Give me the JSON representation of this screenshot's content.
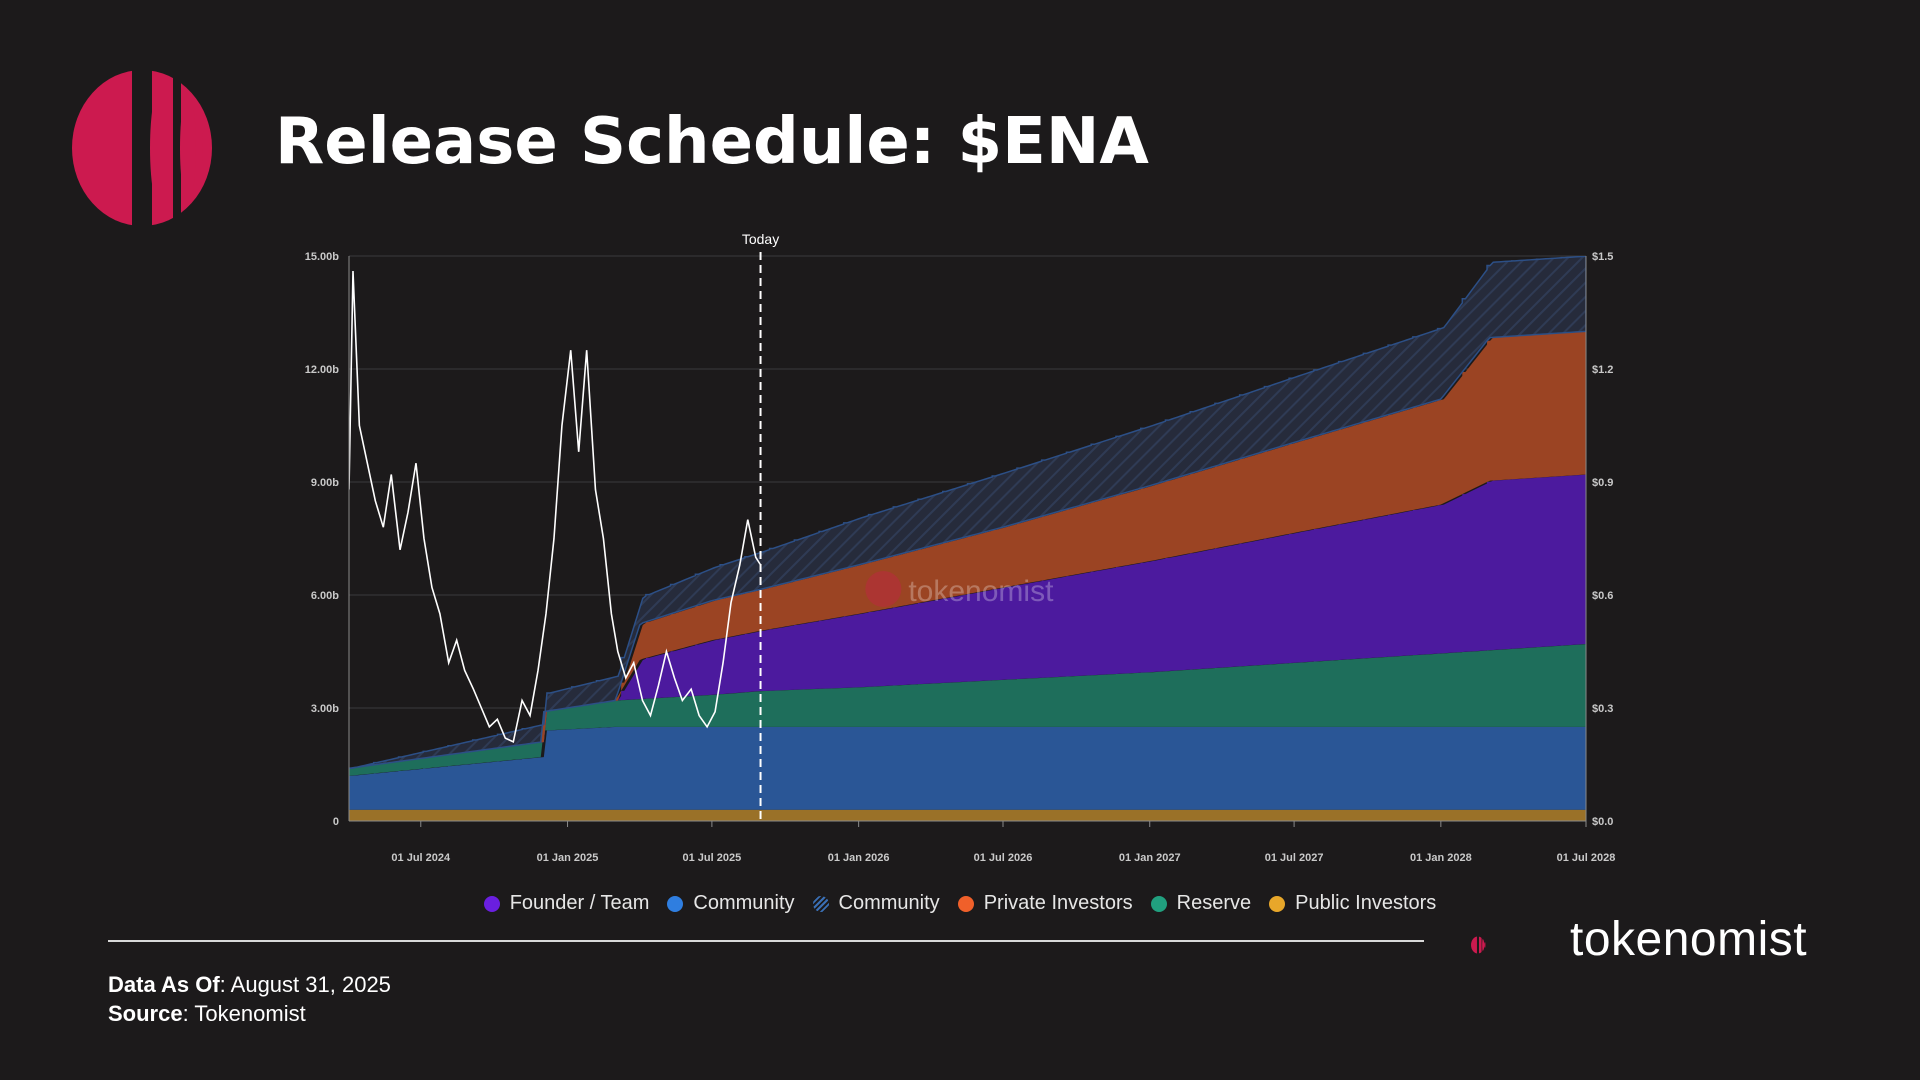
{
  "header": {
    "title": "Release Schedule: $ENA"
  },
  "footer": {
    "data_as_of_label": "Data As Of",
    "data_as_of_value": ": August 31, 2025",
    "source_label": "Source",
    "source_value": ": Tokenomist"
  },
  "brand": {
    "name": "tokenomist",
    "watermark": "tokenomist"
  },
  "colors": {
    "background": "#1c1a1b",
    "founder_team": "#4c1a9e",
    "community": "#2a5696",
    "community_hatched": "#26324a",
    "private_investors": "#9b4423",
    "reserve": "#1e6e5b",
    "public_investors": "#9a7128",
    "price_line": "#ffffff",
    "brand_red": "#cc1a4f"
  },
  "chart_data": {
    "type": "area",
    "title": "",
    "today_label": "Today",
    "today_date": "2025-08-31",
    "x_ticks": [
      "01 Jul 2024",
      "01 Jan 2025",
      "01 Jul 2025",
      "01 Jan 2026",
      "01 Jul 2026",
      "01 Jan 2027",
      "01 Jul 2027",
      "01 Jan 2028",
      "01 Jul 2028"
    ],
    "xlim": [
      "2024-04-02",
      "2028-07-01"
    ],
    "y_left_ticks": [
      "0",
      "3.00b",
      "6.00b",
      "9.00b",
      "12.00b",
      "15.00b"
    ],
    "ylim_left": [
      0,
      15
    ],
    "y_left_unit": "billions of tokens",
    "y_right_ticks": [
      "$0.0",
      "$0.3",
      "$0.6",
      "$0.9",
      "$1.2",
      "$1.5"
    ],
    "ylim_right": [
      0,
      1.5
    ],
    "stacking_order": [
      "Public Investors",
      "Community",
      "Reserve",
      "Founder / Team",
      "Private Investors",
      "Community (projected)"
    ],
    "series": [
      {
        "name": "Founder / Team",
        "legend_style": "dot",
        "x": [
          "2024-04-02",
          "2025-03-02",
          "2025-04-02",
          "2025-07-01",
          "2025-08-31",
          "2026-01-01",
          "2026-07-01",
          "2027-01-01",
          "2027-07-01",
          "2028-01-01",
          "2028-03-02",
          "2028-07-01"
        ],
        "y": [
          0,
          0,
          1.05,
          1.45,
          1.6,
          1.95,
          2.45,
          2.95,
          3.45,
          3.95,
          4.5,
          4.5
        ]
      },
      {
        "name": "Community",
        "legend_style": "dot",
        "x": [
          "2024-04-02",
          "2024-11-30",
          "2024-12-01",
          "2025-03-02",
          "2025-07-01",
          "2025-08-31",
          "2028-07-01"
        ],
        "y": [
          0.9,
          1.4,
          2.1,
          2.2,
          2.2,
          2.2,
          2.2
        ]
      },
      {
        "name": "Community",
        "legend_style": "hatched",
        "x": [
          "2024-04-02",
          "2025-08-31",
          "2026-01-01",
          "2026-07-01",
          "2027-01-01",
          "2027-07-01",
          "2028-01-01",
          "2028-03-02",
          "2028-07-01"
        ],
        "y": [
          0,
          1.0,
          1.25,
          1.45,
          1.6,
          1.75,
          1.9,
          2.0,
          2.0
        ]
      },
      {
        "name": "Private Investors",
        "legend_style": "dot",
        "x": [
          "2024-04-02",
          "2025-03-02",
          "2025-04-02",
          "2025-07-01",
          "2025-08-31",
          "2026-01-01",
          "2026-07-01",
          "2027-01-01",
          "2027-07-01",
          "2028-01-01",
          "2028-03-02",
          "2028-07-01"
        ],
        "y": [
          0,
          0,
          0.95,
          1.05,
          1.1,
          1.3,
          1.6,
          2.0,
          2.4,
          2.8,
          3.8,
          3.8
        ]
      },
      {
        "name": "Reserve",
        "legend_style": "dot",
        "x": [
          "2024-04-02",
          "2024-11-30",
          "2024-12-01",
          "2025-03-02",
          "2025-07-01",
          "2025-08-31",
          "2026-01-01",
          "2026-07-01",
          "2027-01-01",
          "2027-07-01",
          "2028-01-01",
          "2028-07-01"
        ],
        "y": [
          0.2,
          0.4,
          0.5,
          0.7,
          0.85,
          0.95,
          1.05,
          1.25,
          1.45,
          1.7,
          1.95,
          2.2
        ]
      },
      {
        "name": "Public Investors",
        "legend_style": "dot",
        "x": [
          "2024-04-02",
          "2028-07-01"
        ],
        "y": [
          0.3,
          0.3
        ]
      }
    ],
    "price_series": {
      "axis": "right",
      "x": [
        "2024-04-02",
        "2024-04-07",
        "2024-04-15",
        "2024-04-25",
        "2024-05-05",
        "2024-05-15",
        "2024-05-25",
        "2024-06-05",
        "2024-06-15",
        "2024-06-25",
        "2024-07-05",
        "2024-07-15",
        "2024-07-25",
        "2024-08-05",
        "2024-08-15",
        "2024-08-25",
        "2024-09-05",
        "2024-09-15",
        "2024-09-25",
        "2024-10-05",
        "2024-10-15",
        "2024-10-25",
        "2024-11-05",
        "2024-11-15",
        "2024-11-25",
        "2024-12-05",
        "2024-12-15",
        "2024-12-25",
        "2025-01-05",
        "2025-01-15",
        "2025-01-25",
        "2025-02-05",
        "2025-02-15",
        "2025-02-25",
        "2025-03-05",
        "2025-03-15",
        "2025-03-25",
        "2025-04-05",
        "2025-04-15",
        "2025-04-25",
        "2025-05-05",
        "2025-05-15",
        "2025-05-25",
        "2025-06-05",
        "2025-06-15",
        "2025-06-25",
        "2025-07-05",
        "2025-07-15",
        "2025-07-25",
        "2025-08-05",
        "2025-08-15",
        "2025-08-25",
        "2025-08-31"
      ],
      "y": [
        0.88,
        1.46,
        1.05,
        0.95,
        0.85,
        0.78,
        0.92,
        0.72,
        0.82,
        0.95,
        0.75,
        0.62,
        0.55,
        0.42,
        0.48,
        0.4,
        0.35,
        0.3,
        0.25,
        0.27,
        0.22,
        0.21,
        0.32,
        0.28,
        0.4,
        0.55,
        0.75,
        1.05,
        1.25,
        0.98,
        1.25,
        0.88,
        0.75,
        0.55,
        0.45,
        0.38,
        0.42,
        0.32,
        0.28,
        0.36,
        0.45,
        0.38,
        0.32,
        0.35,
        0.28,
        0.25,
        0.29,
        0.42,
        0.58,
        0.68,
        0.8,
        0.7,
        0.68
      ]
    }
  }
}
